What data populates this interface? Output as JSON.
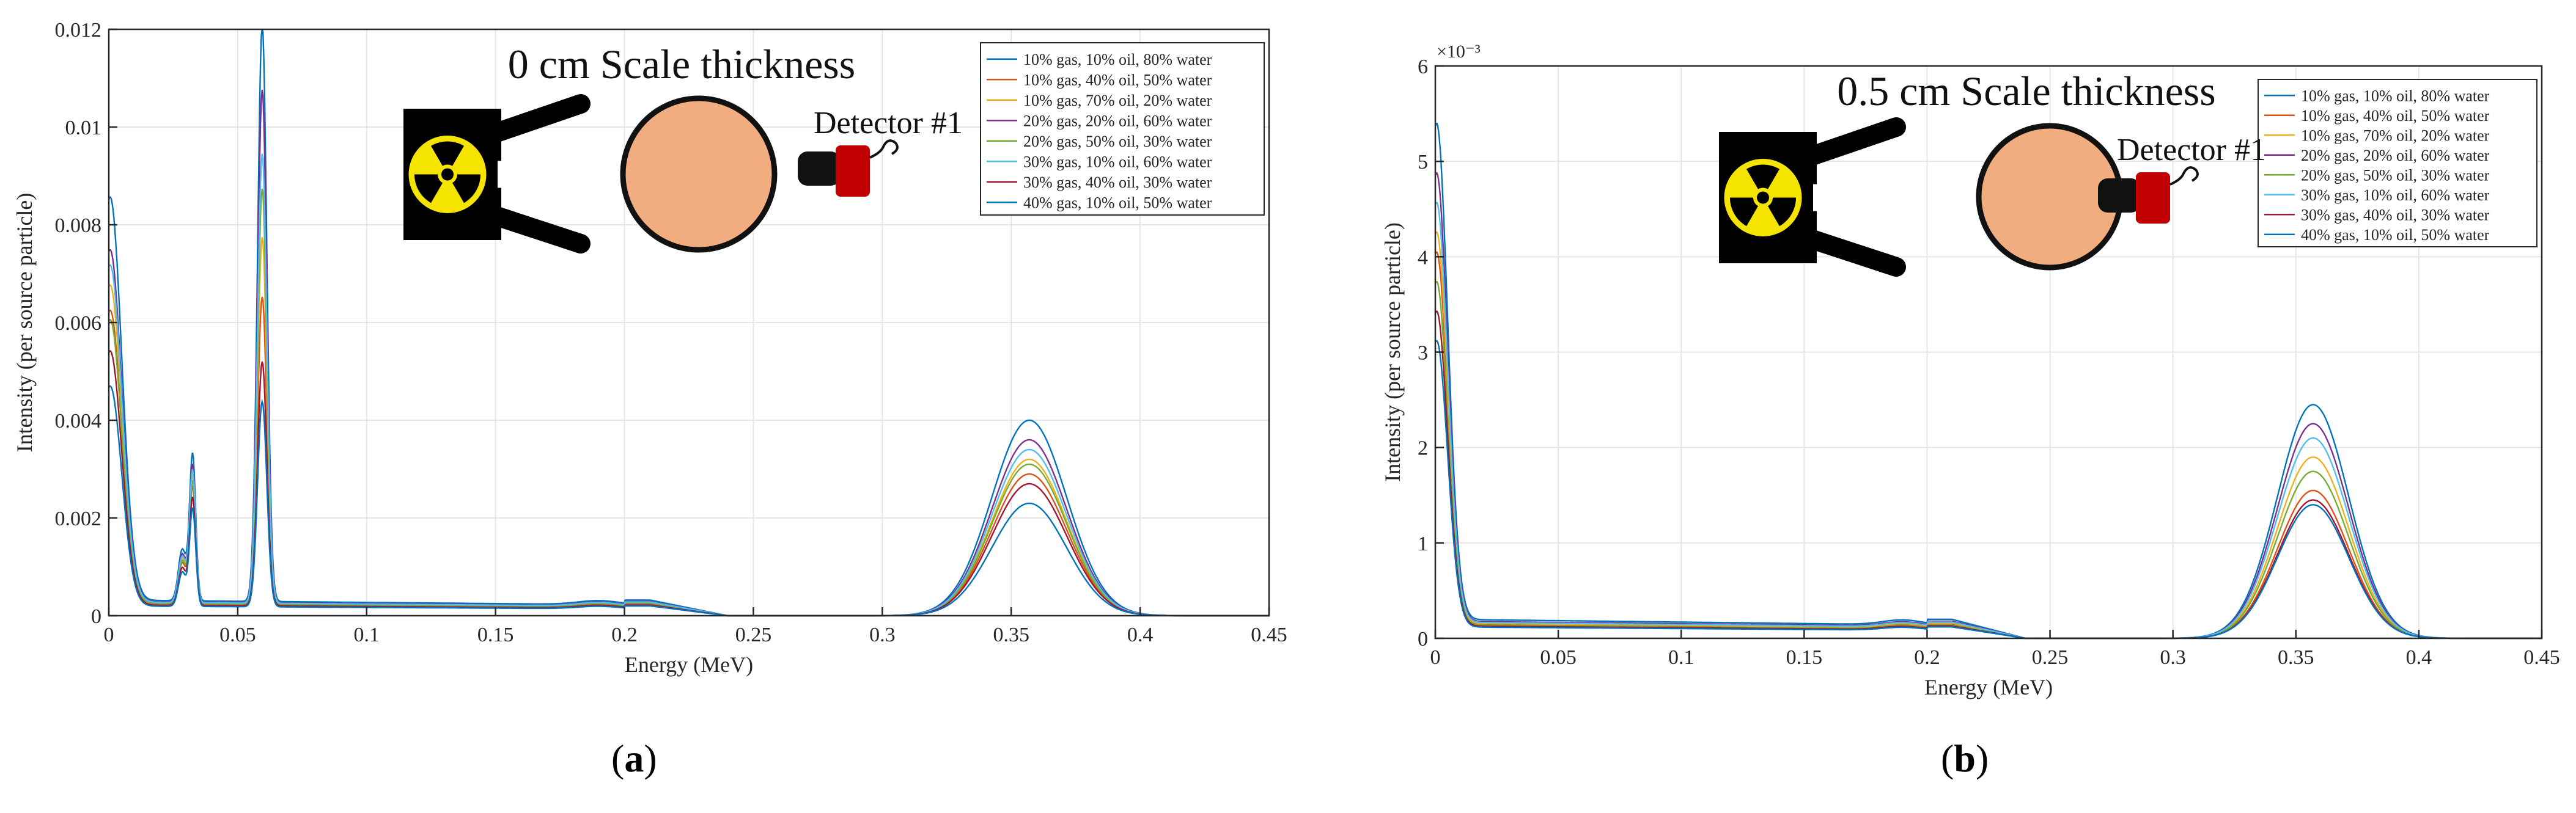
{
  "colors": [
    "#0072BD",
    "#D95319",
    "#EDB120",
    "#7E2F8E",
    "#77AC30",
    "#4DBEEE",
    "#A2142F",
    "#0072BD"
  ],
  "chart_data": [
    {
      "type": "line",
      "panel": "(a)",
      "panel_letter": "a",
      "annotation_title": "0 cm Scale thickness",
      "detector_label": "Detector #1",
      "xlabel": "Energy (MeV)",
      "ylabel": "Intensity (per source particle)",
      "xlim": [
        0,
        0.45
      ],
      "ylim": [
        0,
        0.012
      ],
      "xticks": [
        0,
        0.05,
        0.1,
        0.15,
        0.2,
        0.25,
        0.3,
        0.35,
        0.4,
        0.45
      ],
      "xtick_labels": [
        "0",
        "0.05",
        "0.1",
        "0.15",
        "0.2",
        "0.25",
        "0.3",
        "0.35",
        "0.4",
        "0.45"
      ],
      "yticks": [
        0,
        0.002,
        0.004,
        0.006,
        0.008,
        0.01,
        0.012
      ],
      "ytick_labels": [
        "0",
        "0.002",
        "0.004",
        "0.006",
        "0.008",
        "0.01",
        "0.012"
      ],
      "exponent_label": "",
      "grid": true,
      "legend_position": "top-right",
      "series": [
        {
          "name": "10% gas, 10% oil, 80% water",
          "peak_low": 0.00825,
          "peak_241": 0.0118,
          "peak_356": 0.004,
          "tail": 0.00032,
          "dip_min": 0.00045,
          "peak_31": 0.003
        },
        {
          "name": "10% gas, 40% oil, 50% water",
          "peak_low": 0.006,
          "peak_241": 0.0063,
          "peak_356": 0.0029,
          "tail": 0.00025,
          "dip_min": 0.00035,
          "peak_31": 0.0024
        },
        {
          "name": "10% gas, 70% oil, 20% water",
          "peak_low": 0.0065,
          "peak_241": 0.0075,
          "peak_356": 0.0032,
          "tail": 0.00027,
          "dip_min": 0.00038,
          "peak_31": 0.0026
        },
        {
          "name": "20% gas, 20% oil, 60% water",
          "peak_low": 0.0072,
          "peak_241": 0.0105,
          "peak_356": 0.0036,
          "tail": 0.00029,
          "dip_min": 0.0004,
          "peak_31": 0.0028
        },
        {
          "name": "20% gas, 50% oil, 30% water",
          "peak_low": 0.0058,
          "peak_241": 0.0085,
          "peak_356": 0.0031,
          "tail": 0.00026,
          "dip_min": 0.00036,
          "peak_31": 0.0025
        },
        {
          "name": "30% gas, 10% oil, 60% water",
          "peak_low": 0.0069,
          "peak_241": 0.0092,
          "peak_356": 0.0034,
          "tail": 0.00028,
          "dip_min": 0.00039,
          "peak_31": 0.0027
        },
        {
          "name": "30% gas, 40% oil, 30% water",
          "peak_low": 0.0052,
          "peak_241": 0.005,
          "peak_356": 0.0027,
          "tail": 0.00022,
          "dip_min": 0.00032,
          "peak_31": 0.0022
        },
        {
          "name": "40% gas, 10% oil, 50% water",
          "peak_low": 0.0045,
          "peak_241": 0.0042,
          "peak_356": 0.0023,
          "tail": 0.0002,
          "dip_min": 0.0003,
          "peak_31": 0.002
        }
      ]
    },
    {
      "type": "line",
      "panel": "(b)",
      "panel_letter": "b",
      "annotation_title": "0.5 cm Scale thickness",
      "detector_label": "Detector #1",
      "xlabel": "Energy (MeV)",
      "ylabel": "Intensity (per source particle)",
      "xlim": [
        0,
        0.45
      ],
      "ylim": [
        0,
        6
      ],
      "xticks": [
        0,
        0.05,
        0.1,
        0.15,
        0.2,
        0.25,
        0.3,
        0.35,
        0.4,
        0.45
      ],
      "xtick_labels": [
        "0",
        "0.05",
        "0.1",
        "0.15",
        "0.2",
        "0.25",
        "0.3",
        "0.35",
        "0.4",
        "0.45"
      ],
      "yticks": [
        0,
        1,
        2,
        3,
        4,
        5,
        6
      ],
      "ytick_labels": [
        "0",
        "1",
        "2",
        "3",
        "4",
        "5",
        "6"
      ],
      "exponent_label": "×10⁻³",
      "grid": true,
      "legend_position": "top-right",
      "series": [
        {
          "name": "10% gas, 10% oil, 80% water",
          "peak_low": 5.2,
          "peak_356": 2.45,
          "tail": 0.2
        },
        {
          "name": "10% gas, 40% oil, 50% water",
          "peak_low": 3.9,
          "peak_356": 1.55,
          "tail": 0.15
        },
        {
          "name": "10% gas, 70% oil, 20% water",
          "peak_low": 4.1,
          "peak_356": 1.9,
          "tail": 0.16
        },
        {
          "name": "20% gas, 20% oil, 60% water",
          "peak_low": 4.7,
          "peak_356": 2.25,
          "tail": 0.18
        },
        {
          "name": "20% gas, 50% oil, 30% water",
          "peak_low": 3.6,
          "peak_356": 1.75,
          "tail": 0.14
        },
        {
          "name": "30% gas, 10% oil, 60% water",
          "peak_low": 4.4,
          "peak_356": 2.1,
          "tail": 0.17
        },
        {
          "name": "30% gas, 40% oil, 30% water",
          "peak_low": 3.3,
          "peak_356": 1.45,
          "tail": 0.13
        },
        {
          "name": "40% gas, 10% oil, 50% water",
          "peak_low": 3.0,
          "peak_356": 1.4,
          "tail": 0.12
        }
      ]
    }
  ]
}
